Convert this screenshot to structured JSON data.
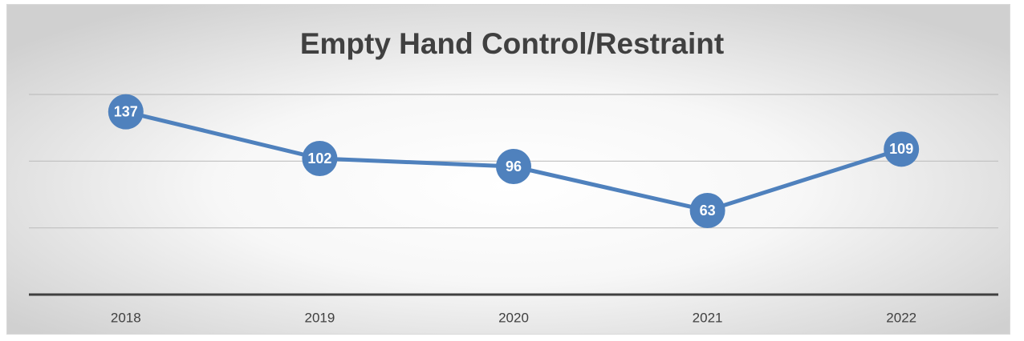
{
  "chart_data": {
    "type": "line",
    "title": "Empty Hand Control/Restraint",
    "categories": [
      "2018",
      "2019",
      "2020",
      "2021",
      "2022"
    ],
    "series": [
      {
        "name": "Empty Hand Control/Restraint",
        "color": "#4f81bd",
        "values": [
          137,
          102,
          96,
          63,
          109
        ]
      }
    ],
    "ylim": [
      0,
      150
    ],
    "yticks": [
      0,
      50,
      100,
      150
    ],
    "grid": true
  }
}
